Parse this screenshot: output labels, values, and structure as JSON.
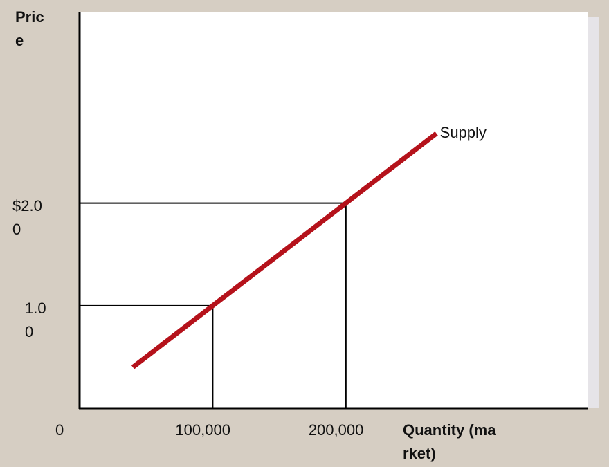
{
  "chart_data": {
    "type": "line",
    "y_label": "Price",
    "x_label": "Quantity (market)",
    "x": [
      40000,
      100000,
      200000,
      268000
    ],
    "series": [
      {
        "name": "Supply",
        "color": "#b5121b",
        "values": [
          0.4,
          1,
          2,
          2.68
        ]
      }
    ],
    "xlim": [
      0,
      382000
    ],
    "ylim": [
      0,
      3.86
    ],
    "xticks": [
      0,
      {
        "value": 100000,
        "label": "100,000"
      },
      {
        "value": 200000,
        "label": "200,000"
      }
    ],
    "yticks": [
      {
        "value": 1,
        "label": "1.00"
      },
      {
        "value": 2,
        "label": "$2.00"
      }
    ]
  }
}
